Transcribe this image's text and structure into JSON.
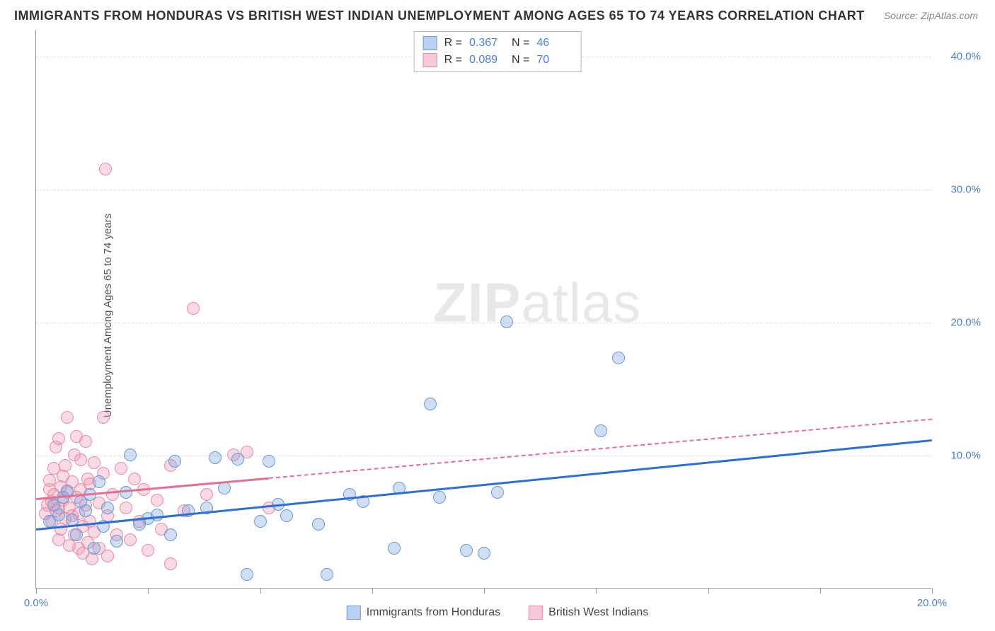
{
  "title": "IMMIGRANTS FROM HONDURAS VS BRITISH WEST INDIAN UNEMPLOYMENT AMONG AGES 65 TO 74 YEARS CORRELATION CHART",
  "source": "Source: ZipAtlas.com",
  "ylabel": "Unemployment Among Ages 65 to 74 years",
  "watermark_bold": "ZIP",
  "watermark_light": "atlas",
  "chart": {
    "type": "scatter",
    "xlim": [
      0,
      20
    ],
    "ylim": [
      0,
      42
    ],
    "xticks": [
      0,
      2.5,
      5,
      7.5,
      10,
      12.5,
      15,
      17.5,
      20
    ],
    "xtick_labels": {
      "0": "0.0%",
      "20": "20.0%"
    },
    "yticks": [
      10,
      20,
      30,
      40
    ],
    "ytick_labels": {
      "10": "10.0%",
      "20": "20.0%",
      "30": "30.0%",
      "40": "40.0%"
    },
    "background_color": "#ffffff",
    "grid_color": "#dddddd",
    "marker_radius": 9,
    "series": [
      {
        "name": "Immigrants from Honduras",
        "color_fill": "rgba(120,160,220,0.35)",
        "color_stroke": "#6a98d8",
        "swatch_fill": "#bcd1ef",
        "swatch_border": "#6a98d8",
        "trend_color": "#2e6fd6",
        "R": "0.367",
        "N": "46",
        "trend": {
          "x1": 0,
          "y1": 4.5,
          "x2": 20,
          "y2": 11.2,
          "solid_until_x": 20,
          "has_dash": false
        },
        "points": [
          [
            0.3,
            5.0
          ],
          [
            0.4,
            6.2
          ],
          [
            0.5,
            5.5
          ],
          [
            0.6,
            6.8
          ],
          [
            0.7,
            7.3
          ],
          [
            0.8,
            5.1
          ],
          [
            0.9,
            4.0
          ],
          [
            1.0,
            6.5
          ],
          [
            1.1,
            5.8
          ],
          [
            1.2,
            7.0
          ],
          [
            1.3,
            3.0
          ],
          [
            1.4,
            8.0
          ],
          [
            1.5,
            4.6
          ],
          [
            1.6,
            6.0
          ],
          [
            1.8,
            3.5
          ],
          [
            2.0,
            7.2
          ],
          [
            2.1,
            10.0
          ],
          [
            2.3,
            4.8
          ],
          [
            2.5,
            5.2
          ],
          [
            2.7,
            5.5
          ],
          [
            3.0,
            4.0
          ],
          [
            3.1,
            9.5
          ],
          [
            3.4,
            5.8
          ],
          [
            3.8,
            6.0
          ],
          [
            4.0,
            9.8
          ],
          [
            4.2,
            7.5
          ],
          [
            4.5,
            9.7
          ],
          [
            4.7,
            1.0
          ],
          [
            5.0,
            5.0
          ],
          [
            5.2,
            9.5
          ],
          [
            5.4,
            6.3
          ],
          [
            5.6,
            5.4
          ],
          [
            6.3,
            4.8
          ],
          [
            6.5,
            1.0
          ],
          [
            7.0,
            7.0
          ],
          [
            7.3,
            6.5
          ],
          [
            8.0,
            3.0
          ],
          [
            8.1,
            7.5
          ],
          [
            8.8,
            13.8
          ],
          [
            9.0,
            6.8
          ],
          [
            9.6,
            2.8
          ],
          [
            10.0,
            2.6
          ],
          [
            10.3,
            7.2
          ],
          [
            10.5,
            20.0
          ],
          [
            13.0,
            17.3
          ],
          [
            12.6,
            11.8
          ]
        ]
      },
      {
        "name": "British West Indians",
        "color_fill": "rgba(240,150,175,0.35)",
        "color_stroke": "#e88aa5",
        "swatch_fill": "#f6c9d6",
        "swatch_border": "#e88aa5",
        "trend_color": "#e36f91",
        "R": "0.089",
        "N": "70",
        "trend": {
          "x1": 0,
          "y1": 6.8,
          "x2": 20,
          "y2": 12.8,
          "solid_until_x": 5.2,
          "has_dash": true
        },
        "points": [
          [
            0.2,
            5.6
          ],
          [
            0.25,
            6.2
          ],
          [
            0.3,
            7.4
          ],
          [
            0.3,
            8.1
          ],
          [
            0.35,
            5.0
          ],
          [
            0.35,
            6.5
          ],
          [
            0.4,
            7.0
          ],
          [
            0.4,
            9.0
          ],
          [
            0.45,
            10.6
          ],
          [
            0.45,
            5.8
          ],
          [
            0.5,
            11.2
          ],
          [
            0.5,
            6.0
          ],
          [
            0.5,
            3.6
          ],
          [
            0.55,
            7.6
          ],
          [
            0.55,
            4.4
          ],
          [
            0.6,
            8.4
          ],
          [
            0.6,
            6.6
          ],
          [
            0.65,
            5.2
          ],
          [
            0.65,
            9.2
          ],
          [
            0.7,
            12.8
          ],
          [
            0.7,
            7.2
          ],
          [
            0.75,
            6.0
          ],
          [
            0.75,
            3.2
          ],
          [
            0.8,
            8.0
          ],
          [
            0.8,
            5.4
          ],
          [
            0.85,
            10.0
          ],
          [
            0.85,
            4.0
          ],
          [
            0.9,
            6.8
          ],
          [
            0.9,
            11.4
          ],
          [
            0.95,
            5.6
          ],
          [
            0.95,
            3.0
          ],
          [
            1.0,
            7.4
          ],
          [
            1.0,
            9.6
          ],
          [
            1.05,
            4.6
          ],
          [
            1.05,
            2.6
          ],
          [
            1.1,
            6.2
          ],
          [
            1.1,
            11.0
          ],
          [
            1.15,
            8.2
          ],
          [
            1.15,
            3.4
          ],
          [
            1.2,
            5.0
          ],
          [
            1.2,
            7.8
          ],
          [
            1.25,
            2.2
          ],
          [
            1.3,
            9.4
          ],
          [
            1.3,
            4.2
          ],
          [
            1.4,
            6.4
          ],
          [
            1.4,
            3.0
          ],
          [
            1.5,
            8.6
          ],
          [
            1.5,
            12.8
          ],
          [
            1.55,
            31.5
          ],
          [
            1.6,
            5.4
          ],
          [
            1.6,
            2.4
          ],
          [
            1.7,
            7.0
          ],
          [
            1.8,
            4.0
          ],
          [
            1.9,
            9.0
          ],
          [
            2.0,
            6.0
          ],
          [
            2.1,
            3.6
          ],
          [
            2.2,
            8.2
          ],
          [
            2.3,
            5.0
          ],
          [
            2.4,
            7.4
          ],
          [
            2.5,
            2.8
          ],
          [
            2.7,
            6.6
          ],
          [
            2.8,
            4.4
          ],
          [
            3.0,
            9.2
          ],
          [
            3.0,
            1.8
          ],
          [
            3.3,
            5.8
          ],
          [
            3.5,
            21.0
          ],
          [
            3.8,
            7.0
          ],
          [
            4.4,
            10.0
          ],
          [
            4.7,
            10.2
          ],
          [
            5.2,
            6.0
          ]
        ]
      }
    ]
  },
  "bottom_legend": [
    {
      "label": "Immigrants from Honduras",
      "series": 0
    },
    {
      "label": "British West Indians",
      "series": 1
    }
  ]
}
